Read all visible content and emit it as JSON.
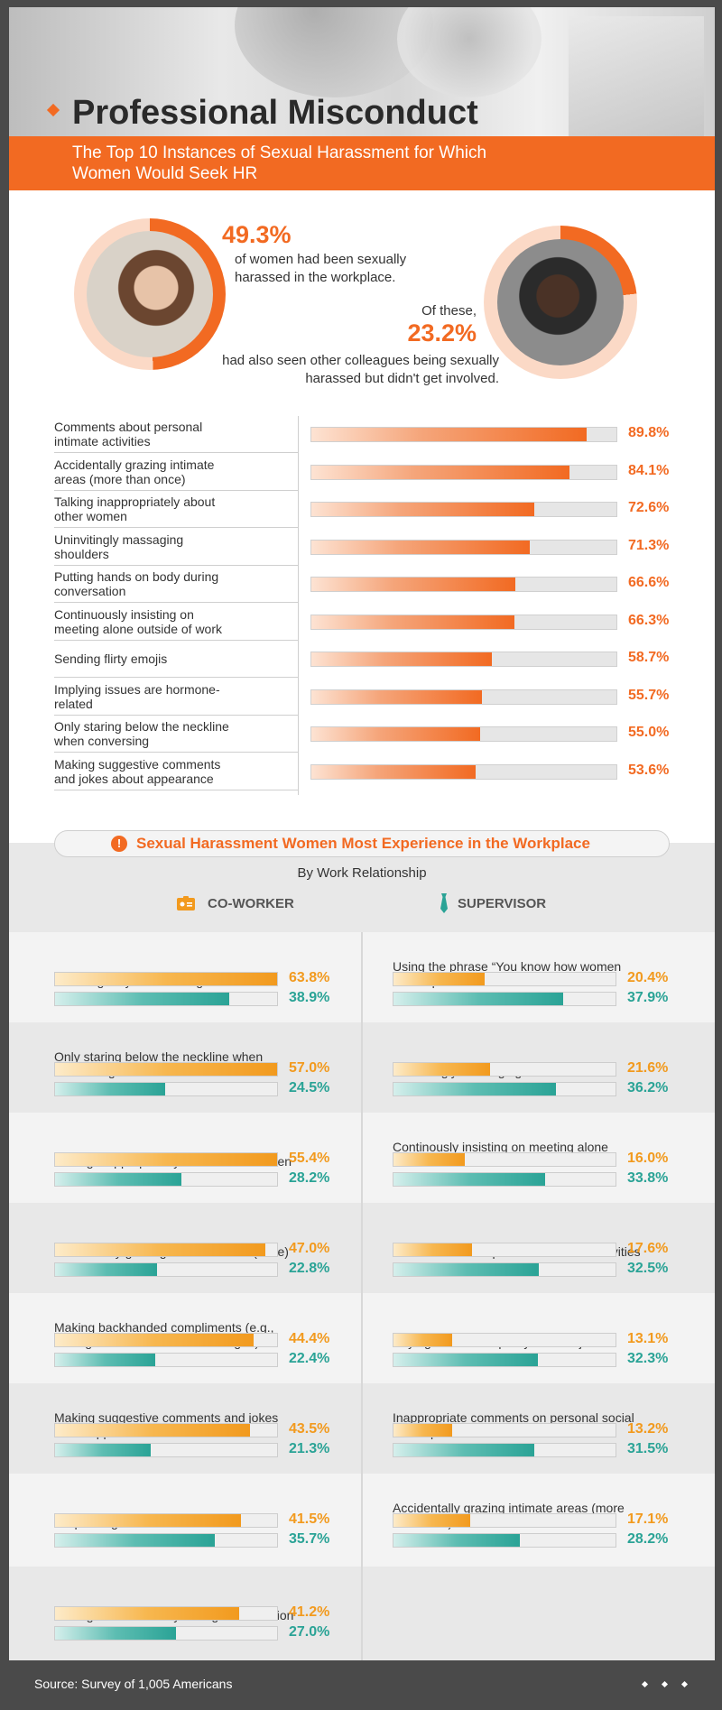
{
  "header": {
    "title": "Professional Misconduct",
    "subtitle": "The Top 10 Instances of Sexual Harassment for Which Women Would Seek HR"
  },
  "stats": {
    "stat1_value": "49.3%",
    "stat1_text": "of women had been sexually harassed in the workplace.",
    "stat2_lead": "Of these,",
    "stat2_value": "23.2%",
    "stat2_text": "had also seen other colleagues being sexually harassed but didn't get involved."
  },
  "colors": {
    "accent": "#f26a22",
    "coworker": "#f29a1e",
    "supervisor": "#2aa396"
  },
  "chart_data": [
    {
      "type": "bar",
      "title": "The Top 10 Instances of Sexual Harassment for Which Women Would Seek HR",
      "categories": [
        "Comments about personal intimate activities",
        "Accidentally grazing intimate areas (more than once)",
        "Talking inappropriately about other women",
        "Uninvitingly massaging shoulders",
        "Putting hands on body during conversation",
        "Continuously insisting on meeting alone outside of work",
        "Sending flirty emojis",
        "Implying issues are hormone-related",
        "Only staring below the neckline when conversing",
        "Making suggestive comments and jokes about appearance"
      ],
      "values": [
        89.8,
        84.1,
        72.6,
        71.3,
        66.6,
        66.3,
        58.7,
        55.7,
        55.0,
        53.6
      ],
      "labels": [
        "89.8%",
        "84.1%",
        "72.6%",
        "71.3%",
        "66.6%",
        "66.3%",
        "58.7%",
        "55.7%",
        "55.0%",
        "53.6%"
      ],
      "ylim": [
        0,
        100
      ]
    },
    {
      "type": "bar",
      "title": "Sexual Harassment Women Most Experience in the Workplace",
      "subtitle": "By Work Relationship",
      "legend": [
        "CO-WORKER",
        "SUPERVISOR"
      ],
      "panel": "co-worker",
      "categories": [
        "Standing very close during conversation",
        "Only staring below the neckline when conversing",
        "Talking inappropriately about other women",
        "Accidentally grazing intimate areas (once)",
        "Making backhanded compliments (e.g., ending a sentence with “... for a girl”)",
        "Making suggestive comments and jokes about appearance",
        "Requesting to smile more",
        "Putting hands on body during conversation"
      ],
      "series": [
        {
          "name": "CO-WORKER",
          "values": [
            63.8,
            57.0,
            55.4,
            47.0,
            44.4,
            43.5,
            41.5,
            41.2
          ],
          "labels": [
            "63.8%",
            "57.0%",
            "55.4%",
            "47.0%",
            "44.4%",
            "43.5%",
            "41.5%",
            "41.2%"
          ]
        },
        {
          "name": "SUPERVISOR",
          "values": [
            38.9,
            24.5,
            28.2,
            22.8,
            22.4,
            21.3,
            35.7,
            27.0
          ],
          "labels": [
            "38.9%",
            "24.5%",
            "28.2%",
            "22.8%",
            "22.4%",
            "21.3%",
            "35.7%",
            "27.0%"
          ]
        }
      ],
      "ylim": [
        0,
        100
      ]
    },
    {
      "type": "bar",
      "panel": "supervisor",
      "categories": [
        "Using the phrase “You know how women are” in professional conversations",
        "Uninvitingly massaging shoulders",
        "Continously insisting on meeting alone outside of work",
        "Comments about personal intimate activities",
        "Saying “You're too pretty” for this job",
        "Inappropriate comments on personal social media pictures",
        "Accidentally grazing intimate areas (more than once)"
      ],
      "series": [
        {
          "name": "SUPERVISOR",
          "values": [
            37.9,
            36.2,
            33.8,
            32.5,
            32.3,
            31.5,
            28.2
          ],
          "labels": [
            "37.9%",
            "36.2%",
            "33.8%",
            "32.5%",
            "32.3%",
            "31.5%",
            "28.2%"
          ]
        },
        {
          "name": "CO-WORKER",
          "values": [
            20.4,
            21.6,
            16.0,
            17.6,
            13.1,
            13.2,
            17.1
          ],
          "labels": [
            "20.4%",
            "21.6%",
            "16.0%",
            "17.6%",
            "13.1%",
            "13.2%",
            "17.1%"
          ]
        }
      ],
      "ylim": [
        0,
        100
      ]
    }
  ],
  "footer": {
    "source": "Source: Survey of 1,005 Americans"
  }
}
